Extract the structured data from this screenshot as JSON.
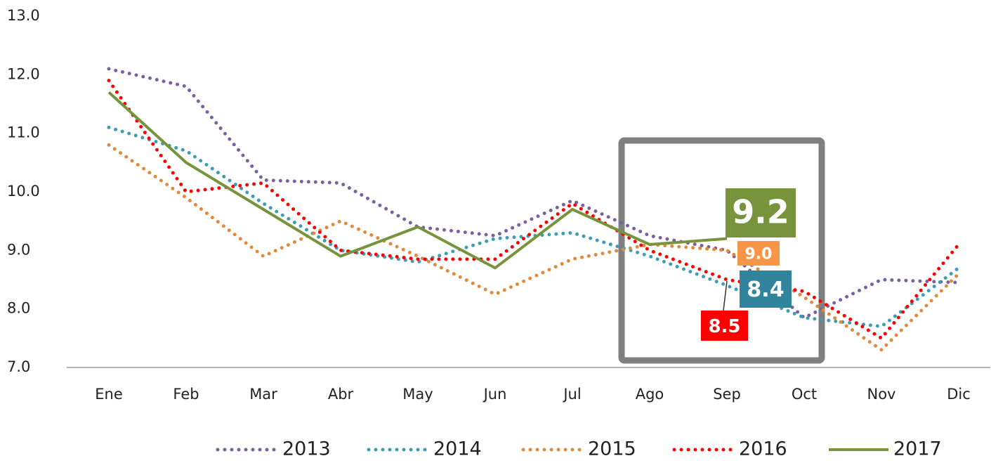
{
  "chart_data": {
    "type": "line",
    "categories": [
      "Ene",
      "Feb",
      "Mar",
      "Abr",
      "May",
      "Jun",
      "Jul",
      "Ago",
      "Sep",
      "Oct",
      "Nov",
      "Dic"
    ],
    "series": [
      {
        "name": "2013",
        "color": "#7b5fa0",
        "dashed": true,
        "values": [
          12.1,
          11.8,
          10.2,
          10.15,
          9.4,
          9.25,
          9.85,
          9.25,
          9.0,
          7.85,
          8.5,
          8.45
        ]
      },
      {
        "name": "2014",
        "color": "#3a9db3",
        "dashed": true,
        "values": [
          11.1,
          10.7,
          9.8,
          9.0,
          8.8,
          9.2,
          9.3,
          8.9,
          8.4,
          7.85,
          7.7,
          8.7
        ],
        "label_color": "#31849b",
        "value_labels": [
          null,
          null,
          null,
          null,
          null,
          null,
          null,
          null,
          "8.4",
          null,
          null,
          null
        ]
      },
      {
        "name": "2015",
        "color": "#e08a3c",
        "dashed": true,
        "values": [
          10.8,
          9.9,
          8.9,
          9.5,
          8.9,
          8.25,
          8.85,
          9.1,
          9.0,
          8.2,
          7.3,
          8.6
        ],
        "label_color": "#f79646",
        "value_labels": [
          null,
          null,
          null,
          null,
          null,
          null,
          null,
          null,
          "9.0",
          null,
          null,
          null
        ]
      },
      {
        "name": "2016",
        "color": "#ff0000",
        "dashed": true,
        "values": [
          11.9,
          10.0,
          10.15,
          9.0,
          8.85,
          8.85,
          9.8,
          9.0,
          8.5,
          8.3,
          7.5,
          9.1
        ],
        "label_color": "#ff0000",
        "value_labels": [
          null,
          null,
          null,
          null,
          null,
          null,
          null,
          null,
          "8.5",
          null,
          null,
          null
        ]
      },
      {
        "name": "2017",
        "color": "#77933c",
        "dashed": false,
        "values": [
          11.7,
          10.5,
          9.7,
          8.9,
          9.4,
          8.7,
          9.7,
          9.1,
          9.2,
          null,
          null,
          null
        ],
        "label_color": "#77933c",
        "value_labels": [
          null,
          null,
          null,
          null,
          null,
          null,
          null,
          null,
          "9.2",
          null,
          null,
          null
        ]
      }
    ],
    "ylim": [
      7,
      13
    ],
    "yticks": [
      {
        "value": 7,
        "label": "7.0"
      },
      {
        "value": 8,
        "label": "8.0"
      },
      {
        "value": 9,
        "label": "9.0"
      },
      {
        "value": 10,
        "label": "10.0"
      },
      {
        "value": 11,
        "label": "11.0"
      },
      {
        "value": 12,
        "label": "12.0"
      },
      {
        "value": 13,
        "label": "13.0"
      }
    ],
    "grid": false,
    "legend": "bottom"
  }
}
